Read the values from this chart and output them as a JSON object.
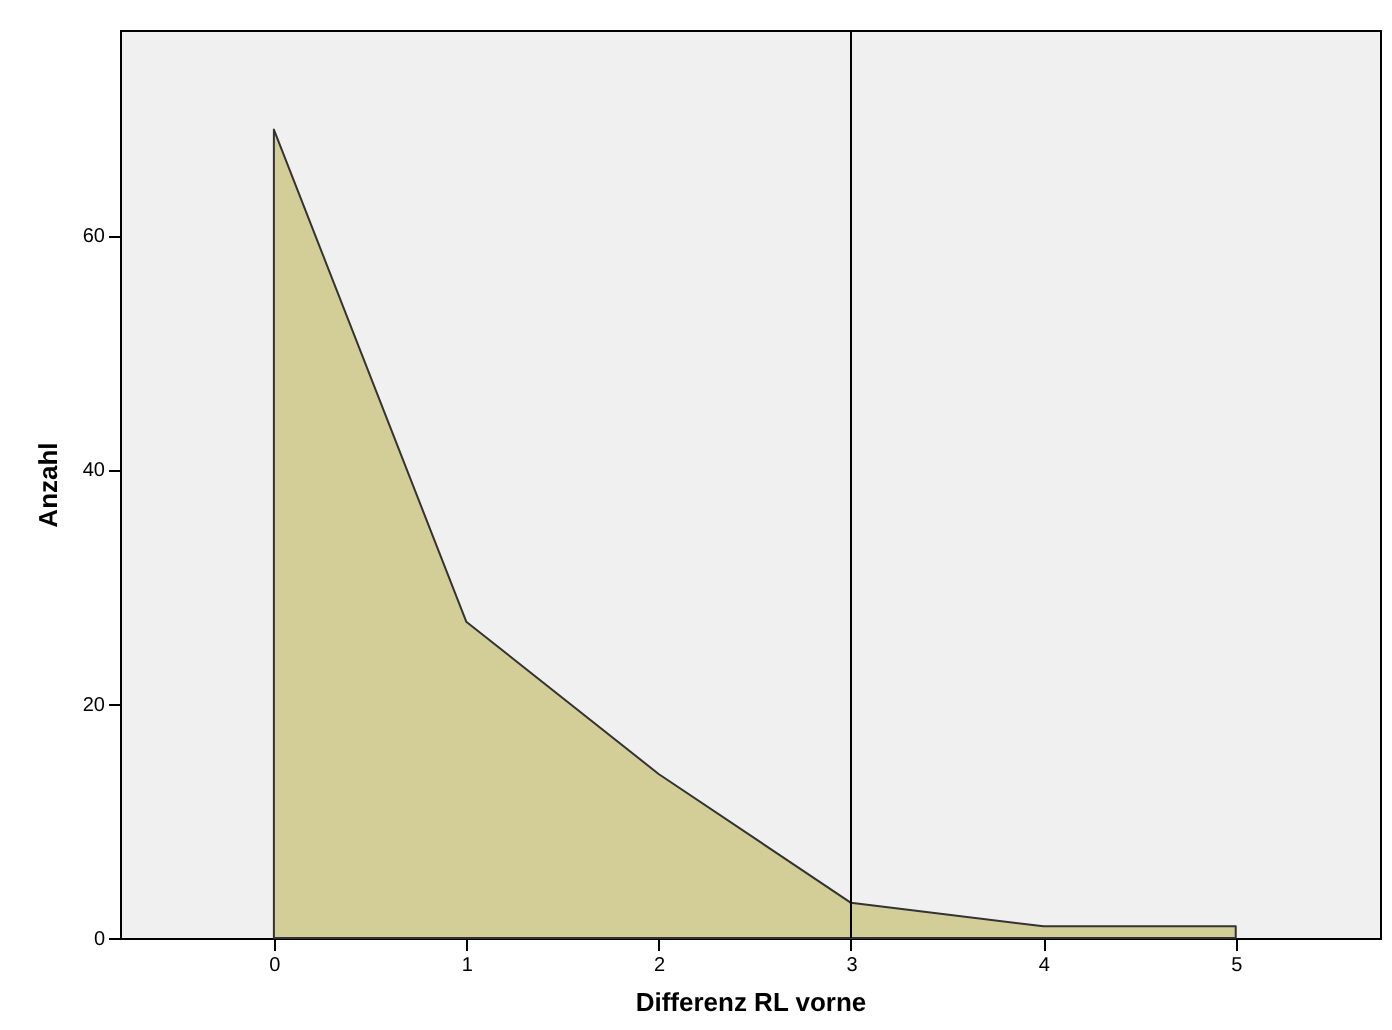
{
  "chart_data": {
    "type": "area",
    "xlabel": "Differenz RL vorne",
    "ylabel": "Anzahl",
    "x": [
      0,
      1,
      2,
      3,
      4,
      5
    ],
    "series": [
      {
        "color": "#d3ce98",
        "values": [
          69,
          27,
          14,
          3,
          1,
          1
        ]
      }
    ],
    "xlim": [
      -0.8,
      5.75
    ],
    "xticks": [
      0,
      1,
      2,
      3,
      4,
      5
    ],
    "ylim": [
      0,
      77.5
    ],
    "yticks": [
      0,
      20,
      40,
      60
    ],
    "ref_lines": [
      {
        "axis": "x",
        "value": 3,
        "color": "#000000"
      }
    ],
    "grid": false
  }
}
